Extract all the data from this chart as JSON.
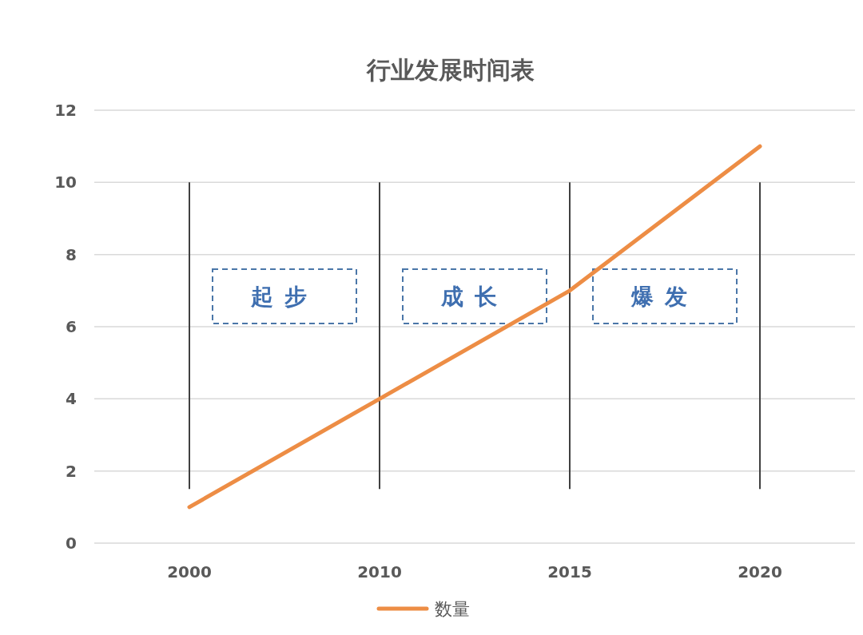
{
  "chart_data": {
    "type": "line",
    "title": "行业发展时间表",
    "categories": [
      "2000",
      "2010",
      "2015",
      "2020"
    ],
    "series": [
      {
        "name": "数量",
        "color": "#ed8d45",
        "values": [
          1,
          4,
          7,
          11
        ]
      }
    ],
    "ylim": [
      0,
      12
    ],
    "yticks": [
      0,
      2,
      4,
      6,
      8,
      10,
      12
    ],
    "grid": "y",
    "legend": "bottom",
    "marker": "none",
    "line_style": "solid",
    "ref_lines": [
      {
        "axis": "x",
        "value": "2000",
        "color": "#404040"
      },
      {
        "axis": "x",
        "value": "2010",
        "color": "#404040"
      },
      {
        "axis": "x",
        "value": "2015",
        "color": "#404040"
      },
      {
        "axis": "x",
        "value": "2020",
        "color": "#404040"
      }
    ],
    "annotations": [
      "起步",
      "成长",
      "爆发"
    ]
  }
}
